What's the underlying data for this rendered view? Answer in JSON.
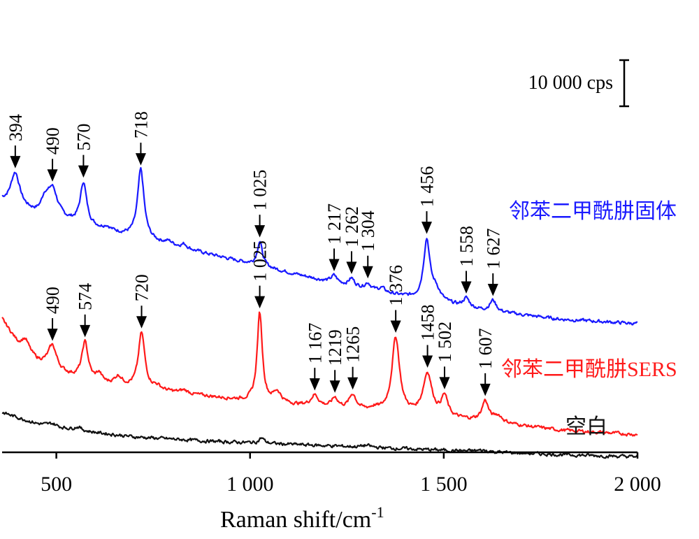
{
  "chart_data": {
    "type": "line",
    "title": "",
    "xlabel": "Raman shift/cm",
    "xlabel_superscript": "-1",
    "ylabel": "",
    "xlim": [
      360,
      2000
    ],
    "y_units": "cps (offset traces)",
    "scale_bar_label": "10 000 cps",
    "x_ticks": [
      {
        "value": 500,
        "label": "500"
      },
      {
        "value": 1000,
        "label": "1 000"
      },
      {
        "value": 1500,
        "label": "1 500"
      },
      {
        "value": 2000,
        "label": "2 000"
      }
    ],
    "grid": false,
    "series": [
      {
        "name": "邻苯二甲酰肼固体",
        "color": "#1a1aff",
        "baseline": [
          [
            360,
            57000
          ],
          [
            450,
            54000
          ],
          [
            600,
            51000
          ],
          [
            800,
            47000
          ],
          [
            1000,
            43000
          ],
          [
            1200,
            39000
          ],
          [
            1400,
            35500
          ],
          [
            1600,
            32500
          ],
          [
            1800,
            30500
          ],
          [
            2000,
            29500
          ]
        ],
        "peaks": [
          {
            "x": 394,
            "label": "394",
            "height": 7500,
            "width": 14
          },
          {
            "x": 470,
            "label": "",
            "height": 3000,
            "width": 10
          },
          {
            "x": 490,
            "label": "490",
            "height": 6500,
            "width": 16
          },
          {
            "x": 570,
            "label": "570",
            "height": 9500,
            "width": 10
          },
          {
            "x": 630,
            "label": "",
            "height": 800,
            "width": 10
          },
          {
            "x": 718,
            "label": "718",
            "height": 15500,
            "width": 10
          },
          {
            "x": 790,
            "label": "",
            "height": 700,
            "width": 12
          },
          {
            "x": 830,
            "label": "",
            "height": 900,
            "width": 10
          },
          {
            "x": 1025,
            "label": "1 025",
            "height": 5500,
            "width": 8
          },
          {
            "x": 1217,
            "label": "1 217",
            "height": 1600,
            "width": 9
          },
          {
            "x": 1262,
            "label": "1 262",
            "height": 1700,
            "width": 9
          },
          {
            "x": 1304,
            "label": "1 304",
            "height": 1400,
            "width": 9
          },
          {
            "x": 1340,
            "label": "",
            "height": 900,
            "width": 10
          },
          {
            "x": 1456,
            "label": "1 456",
            "height": 13500,
            "width": 10
          },
          {
            "x": 1480,
            "label": "",
            "height": 2500,
            "width": 14
          },
          {
            "x": 1558,
            "label": "1 558",
            "height": 2000,
            "width": 10
          },
          {
            "x": 1627,
            "label": "1 627",
            "height": 2500,
            "width": 10
          }
        ]
      },
      {
        "name": "邻苯二甲酰肼SERS",
        "color": "#ff1a1a",
        "baseline": [
          [
            360,
            30500
          ],
          [
            400,
            25000
          ],
          [
            450,
            21000
          ],
          [
            500,
            18500
          ],
          [
            600,
            16000
          ],
          [
            800,
            14000
          ],
          [
            1000,
            12000
          ],
          [
            1200,
            10500
          ],
          [
            1400,
            9000
          ],
          [
            1600,
            7500
          ],
          [
            1800,
            5500
          ],
          [
            2000,
            4500
          ]
        ],
        "peaks": [
          {
            "x": 420,
            "label": "",
            "height": 2500,
            "width": 12
          },
          {
            "x": 490,
            "label": "490",
            "height": 5500,
            "width": 14
          },
          {
            "x": 574,
            "label": "574",
            "height": 8500,
            "width": 10
          },
          {
            "x": 610,
            "label": "",
            "height": 2000,
            "width": 10
          },
          {
            "x": 660,
            "label": "",
            "height": 2000,
            "width": 12
          },
          {
            "x": 720,
            "label": "720",
            "height": 12500,
            "width": 10
          },
          {
            "x": 760,
            "label": "",
            "height": 800,
            "width": 12
          },
          {
            "x": 830,
            "label": "",
            "height": 700,
            "width": 12
          },
          {
            "x": 1025,
            "label": "1 025",
            "height": 20000,
            "width": 8
          },
          {
            "x": 1070,
            "label": "",
            "height": 2500,
            "width": 12
          },
          {
            "x": 1167,
            "label": "1 167",
            "height": 2500,
            "width": 12
          },
          {
            "x": 1219,
            "label": "1219",
            "height": 2200,
            "width": 10
          },
          {
            "x": 1265,
            "label": "1265",
            "height": 3300,
            "width": 11
          },
          {
            "x": 1320,
            "label": "",
            "height": 600,
            "width": 12
          },
          {
            "x": 1376,
            "label": "1 376",
            "height": 17000,
            "width": 12
          },
          {
            "x": 1458,
            "label": "1458",
            "height": 9500,
            "width": 14
          },
          {
            "x": 1502,
            "label": "1 502",
            "height": 4500,
            "width": 10
          },
          {
            "x": 1607,
            "label": "1 607",
            "height": 4500,
            "width": 10
          },
          {
            "x": 1640,
            "label": "",
            "height": 1500,
            "width": 14
          }
        ]
      },
      {
        "name": "空白",
        "color": "#111111",
        "baseline": [
          [
            360,
            9500
          ],
          [
            450,
            7000
          ],
          [
            550,
            5500
          ],
          [
            700,
            4000
          ],
          [
            900,
            3000
          ],
          [
            1200,
            2000
          ],
          [
            1500,
            1000
          ],
          [
            1800,
            0
          ],
          [
            2000,
            -500
          ]
        ],
        "peaks": [
          {
            "x": 490,
            "label": "",
            "height": 600,
            "width": 12
          },
          {
            "x": 555,
            "label": "",
            "height": 800,
            "width": 12
          },
          {
            "x": 1030,
            "label": "",
            "height": 1200,
            "width": 8
          },
          {
            "x": 1300,
            "label": "",
            "height": 400,
            "width": 14
          },
          {
            "x": 1600,
            "label": "",
            "height": 300,
            "width": 20
          }
        ]
      }
    ]
  }
}
